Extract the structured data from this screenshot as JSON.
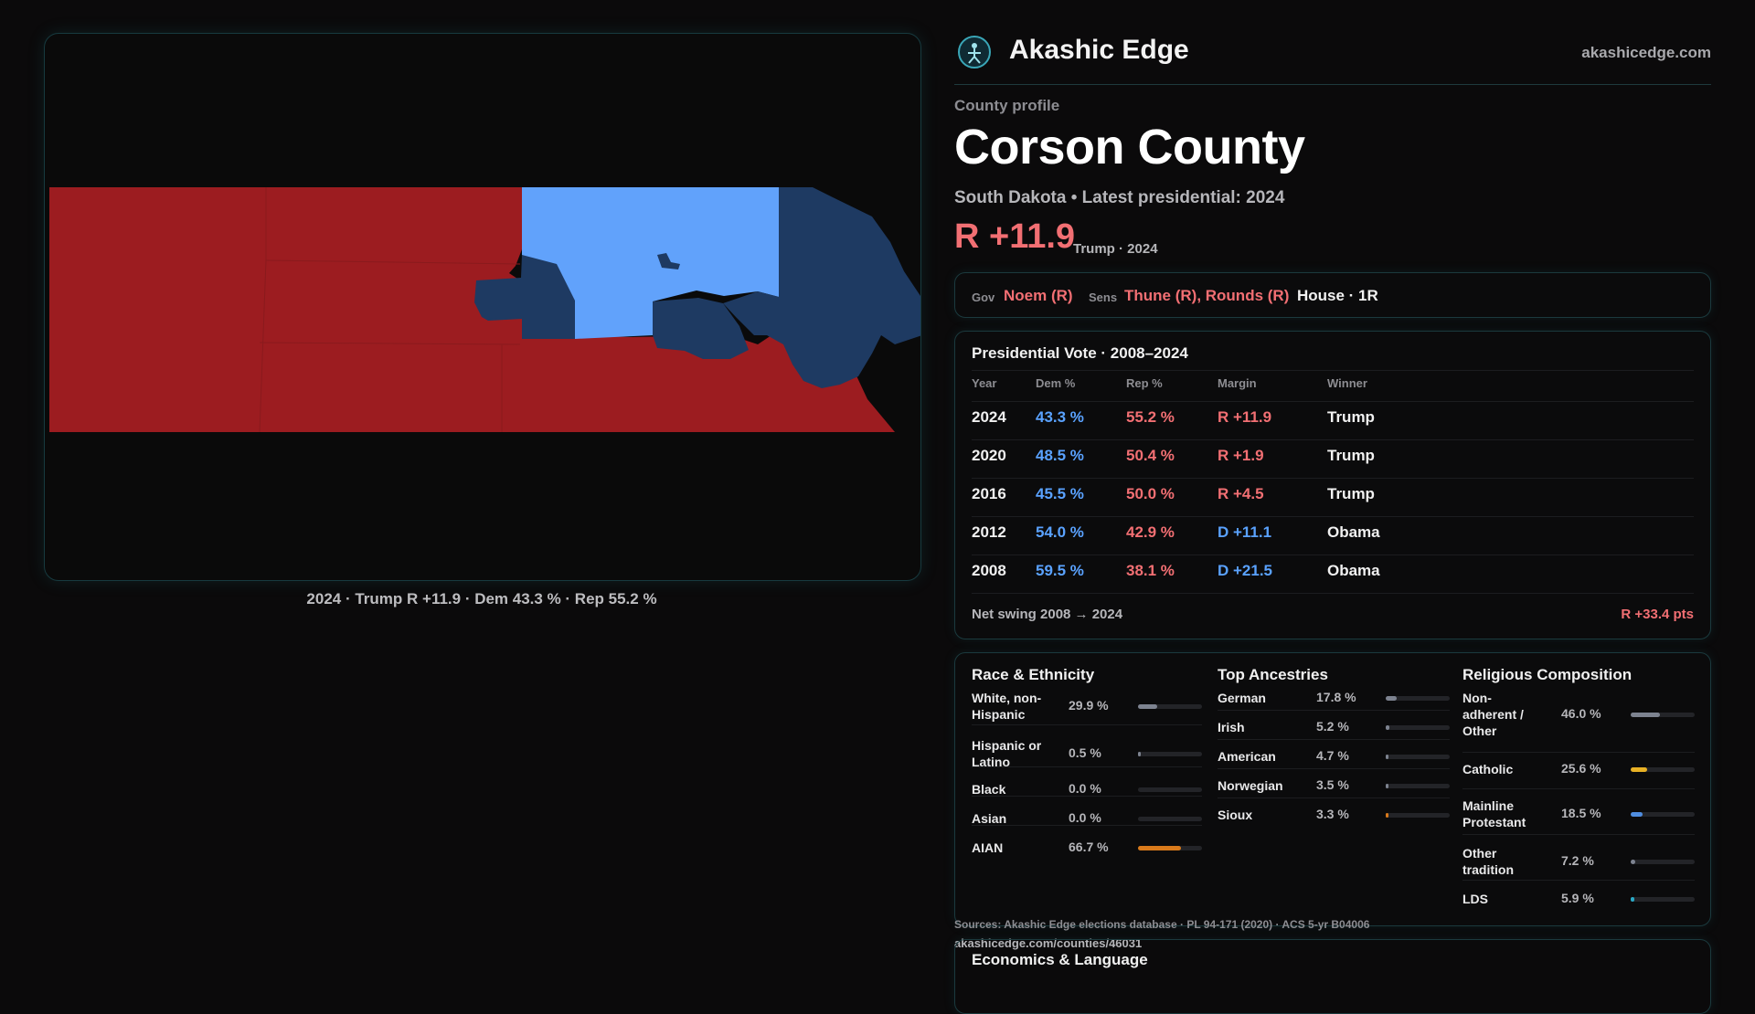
{
  "map": {
    "caption": "2024 · Trump R +11.9 · Dem 43.3 % · Rep 55.2 %",
    "colors": {
      "rep": "#9c1c20",
      "dem_light": "#61a2fb",
      "dem_dark": "#1e3a62",
      "background": "#0a0a0a"
    }
  },
  "brand": {
    "name": "Akashic Edge",
    "url": "akashicedge.com"
  },
  "profile": {
    "kicker": "County profile",
    "title": "Corson County",
    "subtitle": "South Dakota • Latest presidential: 2024",
    "margin": "R +11.9",
    "margin_note": "Trump · 2024"
  },
  "officials": {
    "gov_label": "Gov",
    "gov": "Noem (R)",
    "sens_label": "Sens",
    "sens": "Thune (R), Rounds (R)",
    "house": "House · 1R"
  },
  "presidential": {
    "title": "Presidential Vote · 2008–2024",
    "headers": [
      "Year",
      "Dem %",
      "Rep %",
      "Margin",
      "Winner"
    ],
    "rows": [
      {
        "year": "2024",
        "dem": "43.3 %",
        "rep": "55.2 %",
        "margin": "R +11.9",
        "margin_party": "rep",
        "winner": "Trump"
      },
      {
        "year": "2020",
        "dem": "48.5 %",
        "rep": "50.4 %",
        "margin": "R +1.9",
        "margin_party": "rep",
        "winner": "Trump"
      },
      {
        "year": "2016",
        "dem": "45.5 %",
        "rep": "50.0 %",
        "margin": "R +4.5",
        "margin_party": "rep",
        "winner": "Trump"
      },
      {
        "year": "2012",
        "dem": "54.0 %",
        "rep": "42.9 %",
        "margin": "D +11.1",
        "margin_party": "dem",
        "winner": "Obama"
      },
      {
        "year": "2008",
        "dem": "59.5 %",
        "rep": "38.1 %",
        "margin": "D +21.5",
        "margin_party": "dem",
        "winner": "Obama"
      }
    ],
    "swing_label": "Net swing 2008 → 2024",
    "swing_value": "R +33.4 pts"
  },
  "demographics": {
    "race": {
      "title": "Race & Ethnicity",
      "items": [
        {
          "label": "White, non-Hispanic",
          "pct": "29.9 %",
          "value": 29.9,
          "color": "#7d8390"
        },
        {
          "label": "Hispanic or Latino",
          "pct": "0.5 %",
          "value": 0.5,
          "color": "#7d8390"
        },
        {
          "label": "Black",
          "pct": "0.0 %",
          "value": 0.0,
          "color": "#7d8390"
        },
        {
          "label": "Asian",
          "pct": "0.0 %",
          "value": 0.0,
          "color": "#7d8390"
        },
        {
          "label": "AIAN",
          "pct": "66.7 %",
          "value": 66.7,
          "color": "#d97a1b"
        }
      ]
    },
    "ancestry": {
      "title": "Top Ancestries",
      "items": [
        {
          "label": "German",
          "pct": "17.8 %",
          "value": 17.8,
          "color": "#7d8390"
        },
        {
          "label": "Irish",
          "pct": "5.2 %",
          "value": 5.2,
          "color": "#7d8390"
        },
        {
          "label": "American",
          "pct": "4.7 %",
          "value": 4.7,
          "color": "#7d8390"
        },
        {
          "label": "Norwegian",
          "pct": "3.5 %",
          "value": 3.5,
          "color": "#7d8390"
        },
        {
          "label": "Sioux",
          "pct": "3.3 %",
          "value": 3.3,
          "color": "#d97a1b"
        }
      ]
    },
    "religion": {
      "title": "Religious Composition",
      "items": [
        {
          "label": "Non-adherent / Other",
          "pct": "46.0 %",
          "value": 46.0,
          "color": "#7d8390"
        },
        {
          "label": "Catholic",
          "pct": "25.6 %",
          "value": 25.6,
          "color": "#e8b125"
        },
        {
          "label": "Mainline Protestant",
          "pct": "18.5 %",
          "value": 18.5,
          "color": "#4f8de0"
        },
        {
          "label": "Other tradition",
          "pct": "7.2 %",
          "value": 7.2,
          "color": "#7d8390"
        },
        {
          "label": "LDS",
          "pct": "5.9 %",
          "value": 5.9,
          "color": "#2aa8c4"
        }
      ]
    }
  },
  "footer": {
    "sources": "Sources: Akashic Edge elections database · PL 94-171 (2020) · ACS 5-yr B04006",
    "url": "akashicedge.com/counties/46031"
  },
  "economics": {
    "title": "Economics & Language"
  }
}
